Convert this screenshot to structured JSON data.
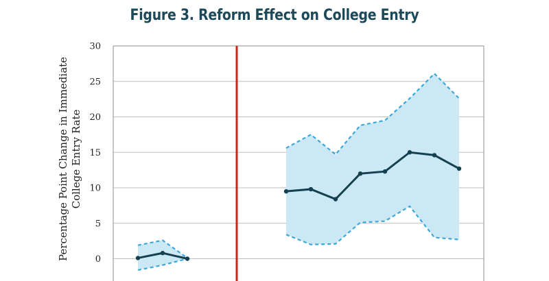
{
  "title": "Figure 3. Reform Effect on College Entry",
  "chart_data": {
    "type": "line",
    "ylabel_line1": "Percentage Point Change in Immediate",
    "ylabel_line2": "College Entry Rate",
    "ylim": [
      -3,
      30
    ],
    "yticks": [
      0,
      5,
      10,
      15,
      20,
      25,
      30
    ],
    "grid": true,
    "reform_marker": {
      "color": "#c0281c"
    },
    "colors": {
      "estimate": "#14414f",
      "ci_line": "#3aa8d8",
      "ci_fill": "#cde8f5"
    },
    "series": [
      {
        "segment": "pre",
        "x": [
          1,
          2,
          3
        ],
        "estimate": [
          0.1,
          0.8,
          0.0
        ],
        "upper": [
          1.9,
          2.6,
          0.1
        ],
        "lower": [
          -1.6,
          -0.9,
          0.0
        ]
      },
      {
        "segment": "post",
        "x": [
          7,
          8,
          9,
          10,
          11,
          12,
          13,
          14
        ],
        "estimate": [
          9.5,
          9.8,
          8.4,
          12.0,
          12.3,
          15.0,
          14.6,
          12.7
        ],
        "upper": [
          15.6,
          17.5,
          14.7,
          18.8,
          19.5,
          22.6,
          26.1,
          22.6
        ],
        "lower": [
          3.4,
          2.0,
          2.1,
          5.1,
          5.3,
          7.4,
          3.0,
          2.7
        ]
      }
    ]
  }
}
